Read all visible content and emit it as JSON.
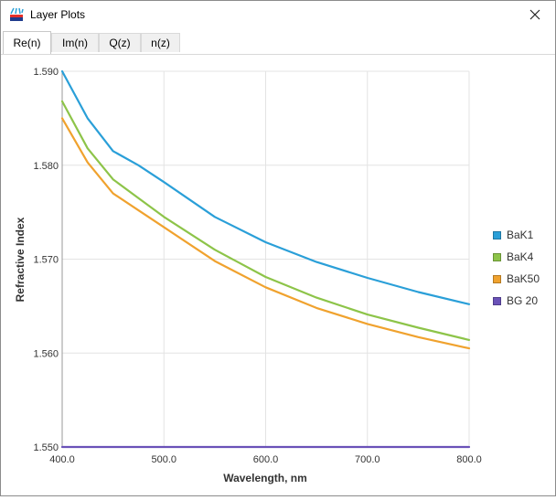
{
  "window": {
    "title": "Layer Plots",
    "app_icon": "layer-plot-icon",
    "close_icon": "close-icon"
  },
  "tabs": [
    {
      "label": "Re(n)",
      "active": true
    },
    {
      "label": "Im(n)",
      "active": false
    },
    {
      "label": "Q(z)",
      "active": false
    },
    {
      "label": "n(z)",
      "active": false
    }
  ],
  "chart_data": {
    "type": "line",
    "xlabel": "Wavelength, nm",
    "ylabel": "Refractive Index",
    "xlim": [
      400,
      800
    ],
    "ylim": [
      1.55,
      1.59
    ],
    "xticks": [
      "400.0",
      "500.0",
      "600.0",
      "700.0",
      "800.0"
    ],
    "yticks": [
      "1.550",
      "1.560",
      "1.570",
      "1.580",
      "1.590"
    ],
    "grid": true,
    "legend_position": "right",
    "x": [
      400,
      425,
      450,
      475,
      500,
      550,
      600,
      650,
      700,
      750,
      800
    ],
    "series": [
      {
        "name": "BaK1",
        "color": "#2a9fd8",
        "values": [
          1.59,
          1.585,
          1.5815,
          1.58,
          1.5782,
          1.5745,
          1.5718,
          1.5697,
          1.568,
          1.5665,
          1.5652
        ]
      },
      {
        "name": "BaK4",
        "color": "#8dc449",
        "values": [
          1.5868,
          1.5818,
          1.5785,
          1.5765,
          1.5745,
          1.571,
          1.5681,
          1.5659,
          1.5641,
          1.5627,
          1.5614
        ]
      },
      {
        "name": "BaK50",
        "color": "#f0a22e",
        "values": [
          1.585,
          1.5803,
          1.577,
          1.5752,
          1.5734,
          1.5698,
          1.567,
          1.5648,
          1.5631,
          1.5617,
          1.5605
        ]
      },
      {
        "name": "BG 20",
        "color": "#6a52b8",
        "values": [
          1.55,
          1.55,
          1.55,
          1.55,
          1.55,
          1.55,
          1.55,
          1.55,
          1.55,
          1.55,
          1.55
        ]
      }
    ]
  }
}
